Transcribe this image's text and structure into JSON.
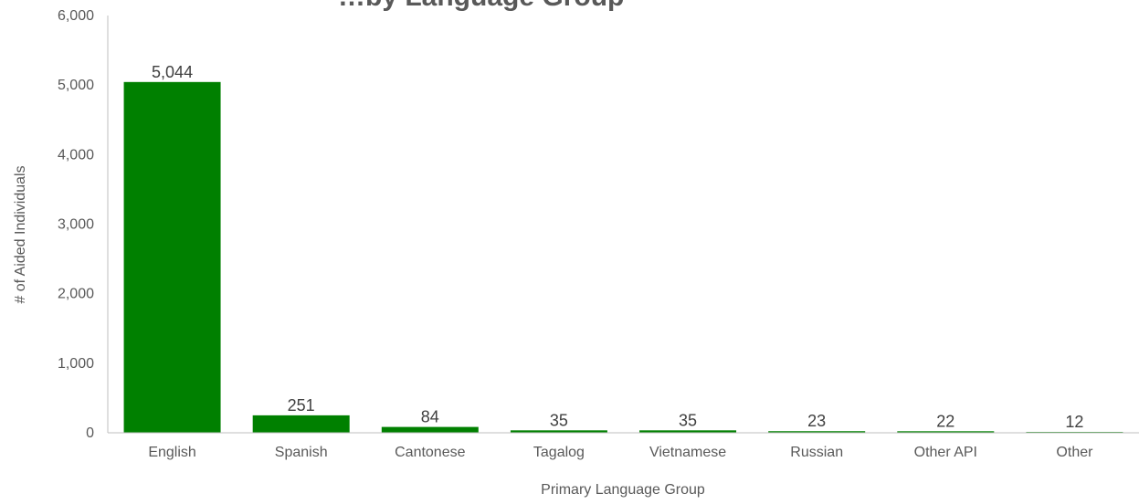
{
  "chart_data": {
    "type": "bar",
    "title": "…by Language Group",
    "categories": [
      "English",
      "Spanish",
      "Cantonese",
      "Tagalog",
      "Vietnamese",
      "Russian",
      "Other API",
      "Other"
    ],
    "values": [
      5044,
      251,
      84,
      35,
      35,
      23,
      22,
      12
    ],
    "value_labels": [
      "5,044",
      "251",
      "84",
      "35",
      "35",
      "23",
      "22",
      "12"
    ],
    "xlabel": "Primary Language Group",
    "ylabel": "# of Aided Individuals",
    "ylim": [
      0,
      6000
    ],
    "yticks": [
      0,
      1000,
      2000,
      3000,
      4000,
      5000,
      6000
    ],
    "ytick_labels": [
      "0",
      "1,000",
      "2,000",
      "3,000",
      "4,000",
      "5,000",
      "6,000"
    ],
    "grid": false,
    "legend": "none",
    "bar_color": "#008000",
    "axis_color": "#bfbfbf",
    "text_color": "#595959"
  }
}
